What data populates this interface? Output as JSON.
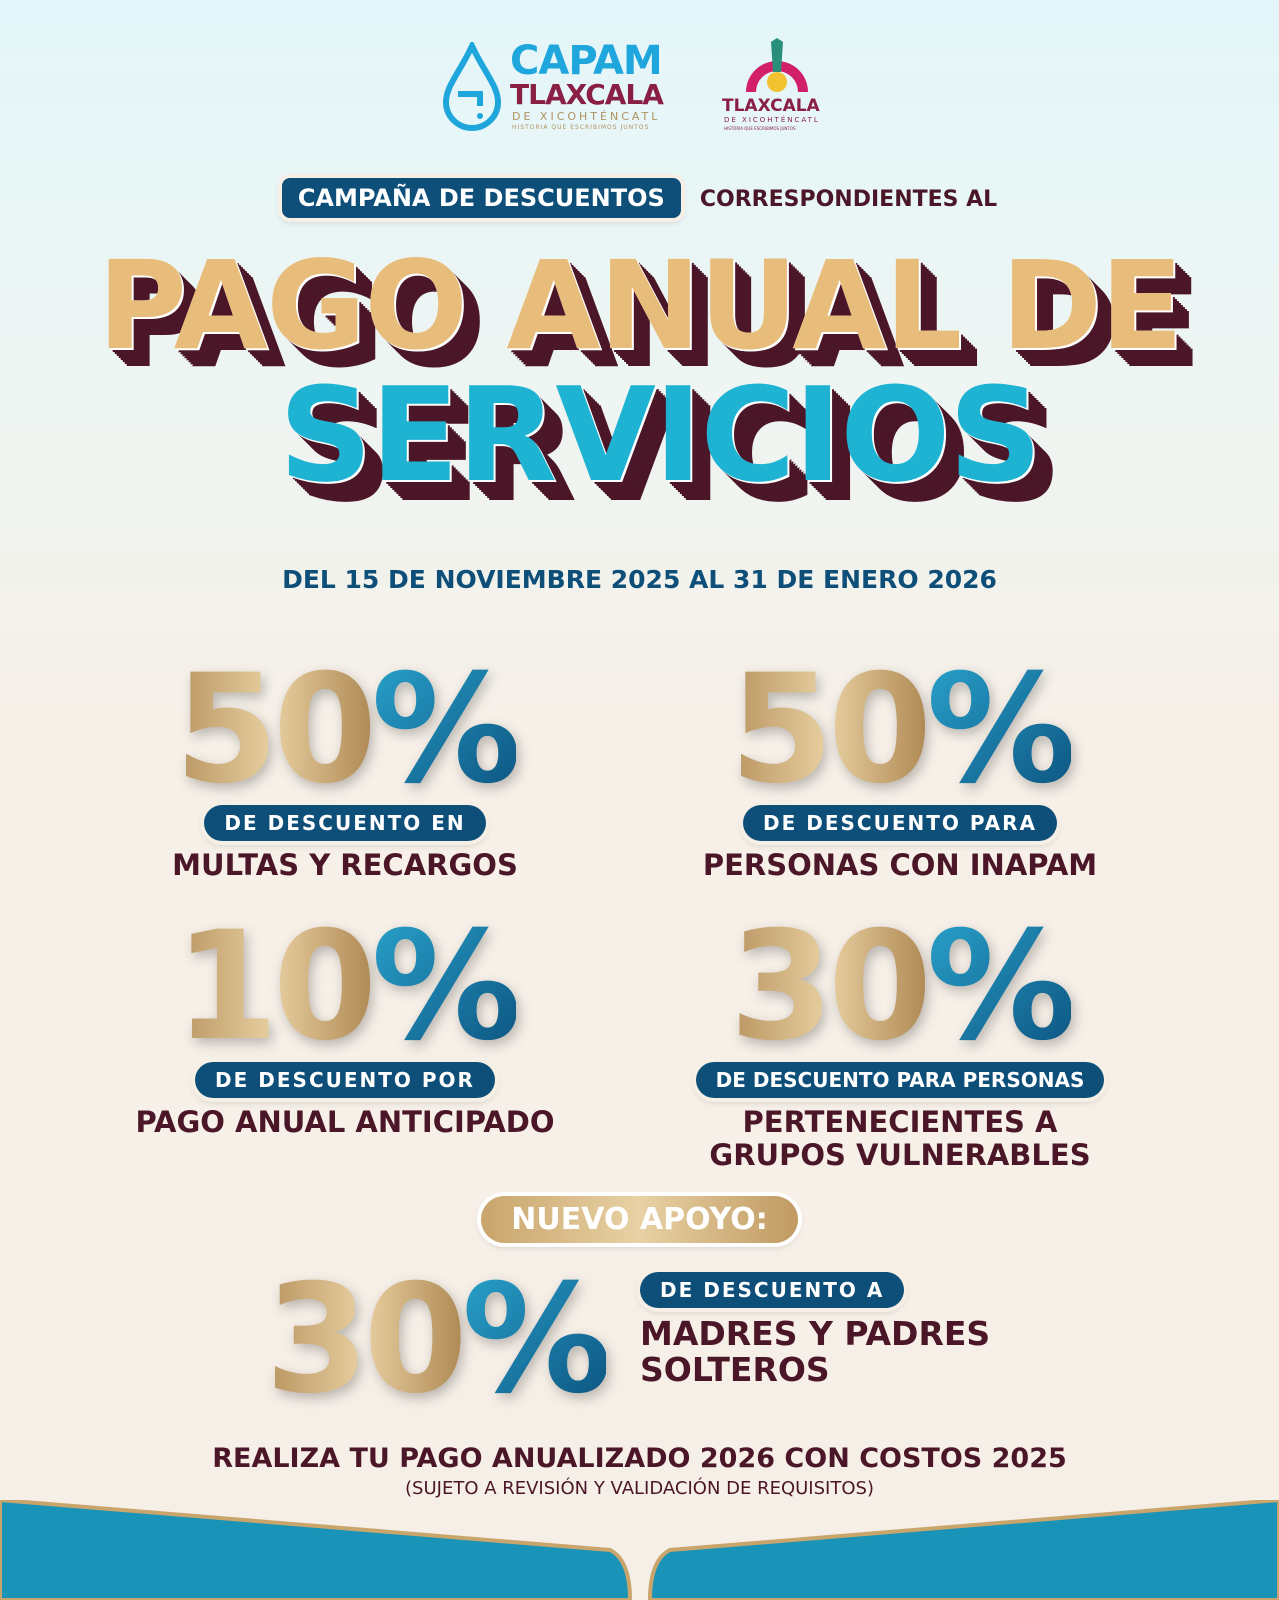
{
  "logos": {
    "capam": {
      "line1": "CAPAM",
      "line2": "TLAXCALA",
      "line3": "DE XICOHTÉNCATL",
      "line4": "HISTORIA QUE ESCRIBIMOS JUNTOS"
    },
    "gobierno": {
      "line1": "TLAXCALA",
      "line2": "DE XICOHTÉNCATL",
      "line3": "HISTORIA QUE ESCRIBIMOS JUNTOS"
    }
  },
  "header": {
    "campaign_pill": "CAMPAÑA DE DESCUENTOS",
    "campaign_rest": "CORRESPONDIENTES AL",
    "title_line1": "PAGO ANUAL DE",
    "title_line2": "SERVICIOS",
    "dates": "DEL 15 DE NOVIEMBRE 2025 AL 31 DE ENERO 2026"
  },
  "discounts": [
    {
      "number": "50",
      "percent": "%",
      "pill": "DE DESCUENTO EN",
      "text": "MULTAS Y RECARGOS"
    },
    {
      "number": "50",
      "percent": "%",
      "pill": "DE DESCUENTO PARA",
      "text": "PERSONAS CON INAPAM"
    },
    {
      "number": "10",
      "percent": "%",
      "pill": "DE DESCUENTO POR",
      "text": "PAGO ANUAL ANTICIPADO"
    },
    {
      "number": "30",
      "percent": "%",
      "pill": "DE DESCUENTO PARA PERSONAS",
      "text": "PERTENECIENTES A GRUPOS VULNERABLES"
    }
  ],
  "new_support": {
    "label": "NUEVO APOYO:",
    "number": "30",
    "percent": "%",
    "pill": "DE DESCUENTO A",
    "line1": "MADRES Y PADRES",
    "line2": "SOLTEROS"
  },
  "footer": {
    "main": "REALIZA TU PAGO ANUALIZADO 2026 CON COSTOS 2025",
    "note": "(SUJETO A REVISIÓN Y VALIDACIÓN DE REQUISITOS)"
  },
  "colors": {
    "navy": "#0e4f7a",
    "maroon": "#4a1628",
    "gold": "#e8bd7c",
    "cyan": "#1fb3d3"
  }
}
